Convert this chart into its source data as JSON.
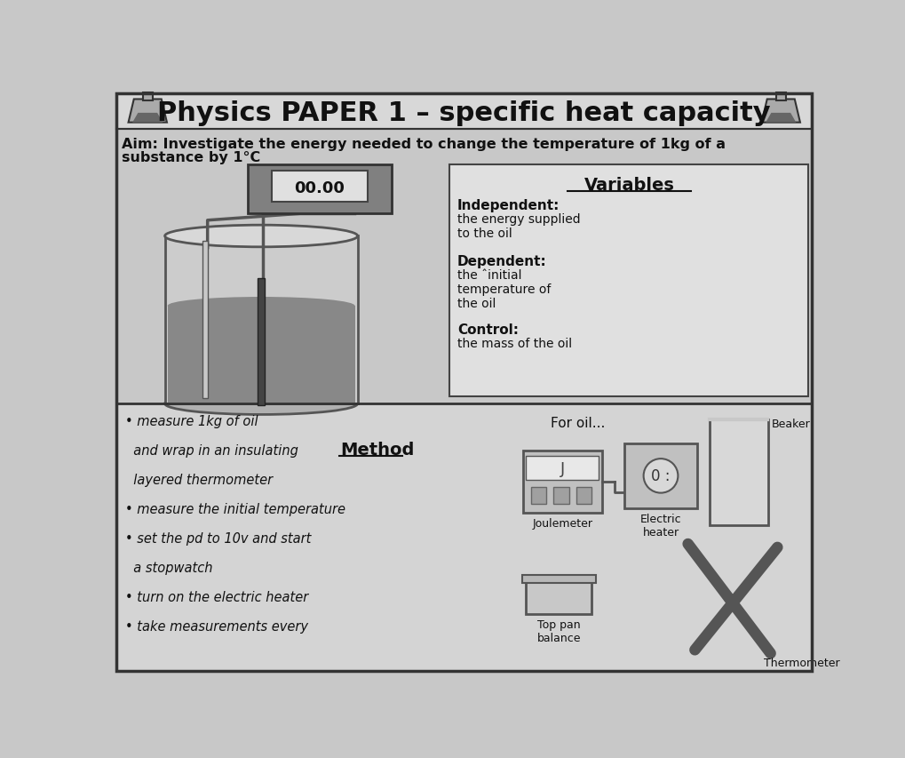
{
  "title": "Physics PAPER 1 – specific heat capacity",
  "aim_line1": "Aim: Investigate the energy needed to change the temperature of 1kg of a",
  "aim_line2": "substance by 1°C",
  "variables_title": "Variables",
  "independent_label": "Independent:",
  "independent_text": "the energy supplied\nto the oil",
  "dependent_label": "Dependent:",
  "dependent_text": "the ˆinitial\ntemperature of\nthe oil",
  "control_label": "Control:",
  "control_text": "the mass of the oil",
  "method_title": "Method",
  "method_lines": [
    "• measure 1kg of oil",
    "  and wrap in an insulating",
    "  layered thermometer",
    "• measure the initial temperature",
    "• set the pd to 10v and start",
    "  a stopwatch",
    "• turn on the electric heater",
    "• take measurements every"
  ],
  "for_oil_text": "For oil...",
  "joulemeter_label": "Joulemeter",
  "electric_heater_label": "Electric\nheater",
  "top_pan_label": "Top pan\nbalance",
  "thermometer_label": "Thermometer",
  "beaker_label": "Beaker",
  "display_text": "00.00",
  "bg_color": "#c8c8c8",
  "header_bg": "#d8d8d8",
  "var_box_bg": "#e0e0e0",
  "method_bg": "#d4d4d4",
  "device_color": "#bbbbbb",
  "dark": "#222222",
  "mid": "#777777",
  "light": "#dddddd"
}
